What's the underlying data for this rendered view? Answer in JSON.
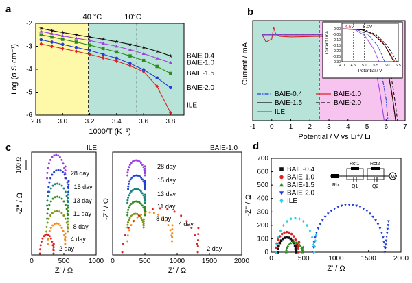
{
  "colors": {
    "black": "#111111",
    "red": "#e02020",
    "green": "#2e8b22",
    "blue": "#1f3fd6",
    "purple": "#9b3fe0",
    "orange": "#f08c1a",
    "teal": "#16837f",
    "olive": "#7d9a1f",
    "cyan": "#22d3e6",
    "yellow_bg": "#fdf9a8",
    "teal_bg": "#b8e3d8",
    "pink_bg": "#f6c4ef"
  },
  "panel_letters": {
    "a": "a",
    "b": "b",
    "c": "c",
    "d": "d"
  },
  "chart_data": [
    {
      "panel": "a",
      "type": "line",
      "xlabel": "1000/T (K⁻¹)",
      "ylabel": "Log (σ S·cm⁻¹)",
      "xlim": [
        2.8,
        3.9
      ],
      "ylim": [
        -6,
        -2
      ],
      "xticks": [
        "2.8",
        "3.0",
        "3.2",
        "3.4",
        "3.6",
        "3.8"
      ],
      "yticks": [
        "-6",
        "-5",
        "-4",
        "-3",
        "-2"
      ],
      "annotations": [
        "40 °C",
        "10°C"
      ],
      "shaded_regions": [
        "yellow",
        "teal"
      ],
      "series": [
        {
          "name": "BAIE-0.4",
          "marker": "star",
          "color": "black",
          "x": [
            2.84,
            2.92,
            3.0,
            3.1,
            3.2,
            3.3,
            3.4,
            3.5,
            3.6,
            3.7,
            3.8
          ],
          "y": [
            -2.22,
            -2.32,
            -2.4,
            -2.5,
            -2.6,
            -2.7,
            -2.8,
            -2.92,
            -3.05,
            -3.22,
            -3.42
          ]
        },
        {
          "name": "BAIE-1.0",
          "marker": "triangle",
          "color": "purple",
          "x": [
            2.84,
            2.92,
            3.0,
            3.1,
            3.2,
            3.3,
            3.4,
            3.5,
            3.6,
            3.7,
            3.8
          ],
          "y": [
            -2.35,
            -2.45,
            -2.55,
            -2.65,
            -2.75,
            -2.88,
            -3.0,
            -3.15,
            -3.32,
            -3.52,
            -3.72
          ]
        },
        {
          "name": "BAIE-1.5",
          "marker": "square",
          "color": "green",
          "x": [
            2.84,
            2.92,
            3.0,
            3.1,
            3.2,
            3.3,
            3.4,
            3.5,
            3.6,
            3.7,
            3.8
          ],
          "y": [
            -2.5,
            -2.6,
            -2.7,
            -2.82,
            -2.95,
            -3.1,
            -3.25,
            -3.42,
            -3.62,
            -3.88,
            -4.18
          ]
        },
        {
          "name": "BAIE-2.0",
          "marker": "circle",
          "color": "blue",
          "x": [
            2.84,
            2.92,
            3.0,
            3.1,
            3.2,
            3.3,
            3.4,
            3.5,
            3.6,
            3.7,
            3.8
          ],
          "y": [
            -2.72,
            -2.82,
            -2.92,
            -3.05,
            -3.18,
            -3.35,
            -3.52,
            -3.75,
            -4.02,
            -4.38,
            -4.8
          ]
        },
        {
          "name": "ILE",
          "marker": "diamond",
          "color": "red",
          "x": [
            2.84,
            2.92,
            3.0,
            3.1,
            3.2,
            3.3,
            3.4,
            3.5,
            3.6,
            3.7,
            3.8
          ],
          "y": [
            -2.9,
            -3.0,
            -3.1,
            -3.22,
            -3.35,
            -3.5,
            -3.65,
            -3.85,
            -4.1,
            -4.75,
            -5.9
          ]
        }
      ]
    },
    {
      "panel": "b",
      "type": "line",
      "xlabel": "Potential / V vs Li⁺/ Li",
      "ylabel": "Current / mA",
      "xlim": [
        -1,
        7
      ],
      "xticks": [
        "-1",
        "0",
        "1",
        "2",
        "3",
        "4",
        "5",
        "6",
        "7"
      ],
      "ylim": [
        -6,
        1
      ],
      "legend": [
        "BAIE-0.4",
        "BAIE-1.5",
        "ILE",
        "BAIE-1.0",
        "BAIE-2.0"
      ],
      "inset": {
        "xlabel": "Potential / V",
        "ylabel": "Current / mA",
        "xlim": [
          4.0,
          6.5
        ],
        "ylim": [
          -0.3,
          0.05
        ],
        "xticks": [
          "4.0",
          "4.5",
          "5.0",
          "5.5",
          "6.0",
          "6.5"
        ],
        "yticks": [
          "0.00",
          "-0.05",
          "-0.10",
          "-0.15",
          "-0.20",
          "-0.25",
          "-0.30"
        ],
        "annotations": [
          "4.5V",
          "5.0V"
        ]
      },
      "series": [
        {
          "name": "BAIE-0.4",
          "style": "dashdot",
          "color": "blue",
          "x": [
            -0.5,
            2.5,
            4.5,
            5.2,
            5.7,
            6.0,
            6.1
          ],
          "y": [
            0,
            0,
            -0.1,
            -0.6,
            -2.2,
            -4.5,
            -6
          ]
        },
        {
          "name": "BAIE-1.0",
          "style": "solid",
          "color": "red",
          "x": [
            -0.5,
            -0.3,
            0.0,
            0.1,
            0.2,
            0.4,
            1.0,
            2.5,
            4.5,
            5.5,
            6.0,
            6.3,
            6.5
          ],
          "y": [
            0,
            -0.5,
            -0.3,
            0.55,
            0.1,
            -0.1,
            -0.15,
            -0.1,
            -0.2,
            -0.6,
            -2.0,
            -4.0,
            -6
          ]
        },
        {
          "name": "BAIE-1.5",
          "style": "solid",
          "color": "black",
          "x": [
            -0.5,
            2.5,
            4.5,
            5.5,
            6.0,
            6.35,
            6.5
          ],
          "y": [
            0,
            0,
            -0.1,
            -0.4,
            -1.8,
            -4.5,
            -6
          ]
        },
        {
          "name": "BAIE-2.0",
          "style": "dashed",
          "color": "black",
          "x": [
            -0.5,
            2.5,
            4.5,
            5.5,
            6.1,
            6.4,
            6.6
          ],
          "y": [
            0,
            0,
            -0.1,
            -0.4,
            -1.5,
            -4.0,
            -6
          ]
        },
        {
          "name": "ILE",
          "style": "solid",
          "color": "purple",
          "x": [
            -0.5,
            2.5,
            4.5,
            5.0,
            5.4,
            5.7,
            5.9
          ],
          "y": [
            0,
            0,
            -0.1,
            -0.5,
            -2.0,
            -4.2,
            -6
          ]
        }
      ]
    },
    {
      "panel": "c-left",
      "type": "scatter",
      "title": "ILE",
      "xlabel": "Z' / Ω",
      "ylabel": "-Z'' / Ω",
      "xlim": [
        0,
        1000
      ],
      "xticks": [
        "0",
        "500",
        "1000"
      ],
      "scale_bar": "100 Ω",
      "series": [
        {
          "name": "28 day",
          "color": "purple"
        },
        {
          "name": "15 day",
          "color": "blue"
        },
        {
          "name": "13 day",
          "color": "teal"
        },
        {
          "name": "11 day",
          "color": "green"
        },
        {
          "name": "8 day",
          "color": "olive"
        },
        {
          "name": "4 day",
          "color": "orange"
        },
        {
          "name": "2 day",
          "color": "red"
        }
      ]
    },
    {
      "panel": "c-right",
      "type": "scatter",
      "title": "BAIE-1.0",
      "xlabel": "Z' / Ω",
      "ylabel": "-Z'' / Ω",
      "xlim": [
        0,
        2000
      ],
      "xticks": [
        "0",
        "500",
        "1000",
        "1500",
        "2000"
      ],
      "series": [
        {
          "name": "28 day",
          "color": "purple"
        },
        {
          "name": "15 day",
          "color": "blue"
        },
        {
          "name": "13 day",
          "color": "teal"
        },
        {
          "name": "11 day",
          "color": "green"
        },
        {
          "name": "8 day",
          "color": "olive"
        },
        {
          "name": "4 day",
          "color": "orange"
        },
        {
          "name": "2 day",
          "color": "red"
        }
      ]
    },
    {
      "panel": "d",
      "type": "scatter",
      "xlabel": "Z' / Ω",
      "ylabel": "-Z'' / Ω",
      "xlim": [
        0,
        2000
      ],
      "ylim": [
        0,
        700
      ],
      "xticks": [
        "0",
        "500",
        "1000",
        "1500",
        "2000"
      ],
      "yticks": [
        "0",
        "100",
        "200",
        "300",
        "400",
        "500",
        "600",
        "700"
      ],
      "circuit_labels": [
        "Rb",
        "Rct1",
        "Rct2",
        "Q1",
        "Q2",
        "W"
      ],
      "series": [
        {
          "name": "BAIE-0.4",
          "marker": "square",
          "color": "black",
          "arc": [
            100,
            380,
            110
          ]
        },
        {
          "name": "BAIE-1.0",
          "marker": "circle",
          "color": "red",
          "arc": [
            70,
            410,
            150
          ]
        },
        {
          "name": "BAIE-1.5",
          "marker": "triangle",
          "color": "green",
          "arc": [
            230,
            480,
            75
          ]
        },
        {
          "name": "BAIE-2.0",
          "marker": "triangle-down",
          "color": "blue",
          "arc": [
            650,
            1750,
            355
          ]
        },
        {
          "name": "ILE",
          "marker": "diamond",
          "color": "cyan",
          "arc": [
            80,
            660,
            255
          ]
        }
      ]
    }
  ]
}
